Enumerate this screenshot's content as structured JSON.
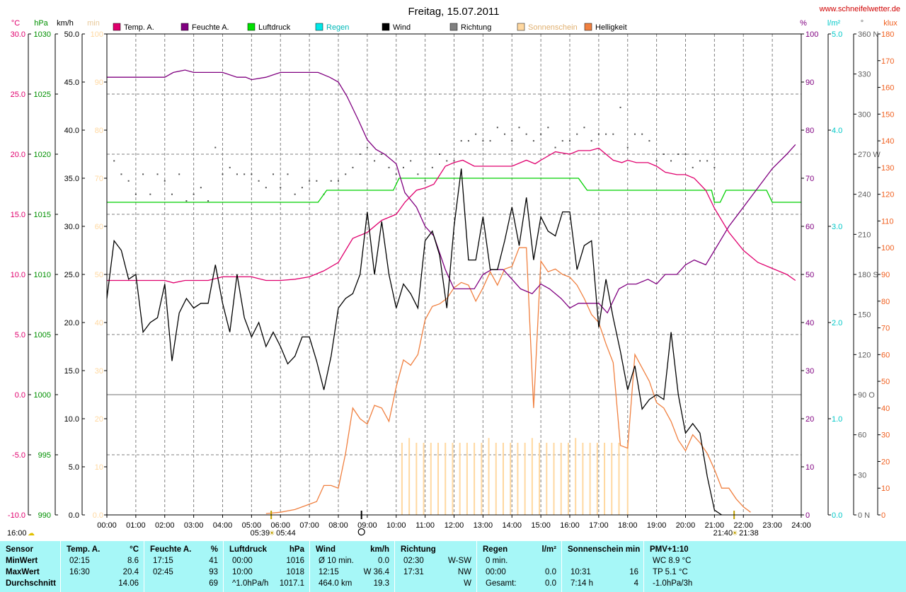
{
  "site": "www.schneifelwetter.de",
  "title": "Freitag, 15.07.2011",
  "left_axis_units": [
    "°C",
    "hPa",
    "km/h",
    "min"
  ],
  "right_axis_units": [
    "%",
    "l/m²",
    "°",
    "klux"
  ],
  "legend": [
    {
      "name": "Temp. A.",
      "color": "#e0006e"
    },
    {
      "name": "Feuchte A.",
      "color": "#800080"
    },
    {
      "name": "Luftdruck",
      "color": "#00e000"
    },
    {
      "name": "Regen",
      "color": "#00e8e8"
    },
    {
      "name": "Wind",
      "color": "#000000"
    },
    {
      "name": "Richtung",
      "color": "#808080"
    },
    {
      "name": "Sonnenschein",
      "color": "#ffd8a0"
    },
    {
      "name": "Helligkeit",
      "color": "#f08040"
    }
  ],
  "sun": {
    "rise_label": "05:39",
    "rise_arrow_label": "05:44",
    "set_label": "21:40",
    "set_arrow_label": "21:38",
    "rise_x": 5.68,
    "set_x": 21.68,
    "noon_x": 8.8
  },
  "start_label": "16:00",
  "chart_data": {
    "type": "line",
    "x_range": [
      0,
      24
    ],
    "x_tick_labels": [
      "00:00",
      "01:00",
      "02:00",
      "03:00",
      "04:00",
      "05:00",
      "06:00",
      "07:00",
      "08:00",
      "09:00",
      "10:00",
      "11:00",
      "12:00",
      "13:00",
      "14:00",
      "15:00",
      "16:00",
      "17:00",
      "18:00",
      "19:00",
      "20:00",
      "21:00",
      "22:00",
      "23:00",
      "24:00"
    ],
    "axes": {
      "temp": {
        "unit": "°C",
        "range": [
          -10,
          30
        ],
        "ticks": [
          "30.0",
          "25.0",
          "20.0",
          "15.0",
          "10.0",
          "5.0",
          "0.0",
          "-5.0",
          "-10.0"
        ],
        "color": "#e0006e"
      },
      "pressure": {
        "unit": "hPa",
        "range": [
          990,
          1030
        ],
        "ticks": [
          "1030",
          "1025",
          "1020",
          "1015",
          "1010",
          "1005",
          "1000",
          "995",
          "990"
        ],
        "color": "#009000"
      },
      "wind": {
        "unit": "km/h",
        "range": [
          0,
          50
        ],
        "ticks": [
          "50.0",
          "45.0",
          "40.0",
          "35.0",
          "30.0",
          "25.0",
          "20.0",
          "15.0",
          "10.0",
          "5.0",
          "0.0"
        ],
        "color": "#000000"
      },
      "sunshine": {
        "unit": "min",
        "range": [
          0,
          100
        ],
        "ticks": [
          "100",
          "90",
          "80",
          "70",
          "60",
          "50",
          "40",
          "30",
          "20",
          "10",
          "0.0"
        ],
        "color": "#ffd8a0"
      },
      "humidity": {
        "unit": "%",
        "range": [
          0,
          100
        ],
        "ticks": [
          "100",
          "90",
          "80",
          "70",
          "60",
          "50",
          "40",
          "30",
          "20",
          "10",
          "0"
        ],
        "color": "#800080"
      },
      "rain": {
        "unit": "l/m²",
        "range": [
          0,
          5
        ],
        "ticks": [
          "5.0",
          "4.0",
          "3.0",
          "2.0",
          "1.0",
          "0.0"
        ],
        "color": "#00c8c8"
      },
      "direction": {
        "unit": "°",
        "range": [
          0,
          360
        ],
        "ticks": [
          "360 N",
          "330",
          "300",
          "270 W",
          "240",
          "210",
          "180 S",
          "150",
          "120",
          "90 O",
          "60",
          "30",
          "0 N"
        ],
        "color": "#606060"
      },
      "brightness": {
        "unit": "klux",
        "range": [
          0,
          180
        ],
        "ticks": [
          "180",
          "170",
          "160",
          "150",
          "140",
          "130",
          "120",
          "110",
          "100",
          "90",
          "80",
          "70",
          "60",
          "50",
          "40",
          "30",
          "20",
          "10",
          "0"
        ],
        "color": "#f06020"
      }
    },
    "series": [
      {
        "name": "Temp. A.",
        "axis": "temp",
        "x": [
          0,
          0.5,
          1,
          1.5,
          2,
          2.3,
          2.7,
          3,
          3.5,
          4,
          4.5,
          5,
          5.5,
          6,
          6.5,
          7,
          7.5,
          8,
          8.5,
          9,
          9.5,
          10,
          10.3,
          10.7,
          11,
          11.3,
          11.7,
          12,
          12.3,
          12.7,
          13,
          13.5,
          14,
          14.5,
          14.8,
          15,
          15.5,
          16,
          16.3,
          16.7,
          17,
          17.5,
          17.8,
          18,
          18.3,
          18.7,
          19,
          19.3,
          19.7,
          20,
          20.3,
          20.7,
          21,
          21.5,
          22,
          22.5,
          23,
          23.5,
          23.8
        ],
        "y": [
          9.5,
          9.5,
          9.5,
          9.5,
          9.5,
          9.3,
          9.5,
          9.5,
          9.5,
          9.8,
          9.8,
          9.8,
          9.5,
          9.5,
          9.6,
          9.8,
          10.3,
          11.0,
          13.0,
          13.5,
          14.5,
          15.0,
          16.0,
          17.0,
          17.2,
          17.5,
          19.0,
          19.3,
          19.5,
          19.0,
          19.0,
          19.0,
          19.0,
          19.5,
          19.2,
          19.5,
          20.2,
          20.0,
          20.3,
          20.3,
          20.5,
          19.5,
          19.3,
          19.5,
          19.3,
          19.3,
          19.0,
          18.5,
          18.3,
          18.3,
          18.0,
          17.0,
          15.5,
          13.5,
          12.0,
          11.0,
          10.5,
          10.0,
          9.5
        ]
      },
      {
        "name": "Feuchte A.",
        "axis": "humidity",
        "x": [
          0,
          0.5,
          1,
          1.5,
          2,
          2.3,
          2.7,
          3,
          3.5,
          4,
          4.5,
          4.8,
          5,
          5.5,
          6,
          6.5,
          7,
          7.3,
          7.7,
          8,
          8.3,
          8.7,
          9,
          9.3,
          9.6,
          10,
          10.3,
          10.7,
          11,
          11.3,
          11.7,
          12,
          12.3,
          12.7,
          13,
          13.3,
          13.7,
          14,
          14.3,
          14.7,
          15,
          15.3,
          15.7,
          16,
          16.3,
          16.7,
          17,
          17.3,
          17.7,
          18,
          18.3,
          18.7,
          19,
          19.3,
          19.7,
          20,
          20.3,
          20.7,
          21,
          21.5,
          22,
          22.5,
          23,
          23.5,
          23.8
        ],
        "y": [
          91,
          91,
          91,
          91,
          91,
          92,
          92.5,
          92,
          92,
          92,
          91,
          91,
          90.5,
          91,
          92,
          92,
          92,
          92,
          91,
          90,
          87,
          82,
          78,
          76,
          75,
          73,
          67,
          64,
          60,
          58,
          51,
          47,
          47,
          47,
          50,
          51,
          51,
          49,
          47,
          46,
          48,
          47,
          45,
          43,
          44,
          44,
          44,
          42,
          47,
          48,
          48,
          49,
          48,
          50,
          50,
          52,
          53,
          52,
          55,
          60,
          64,
          68,
          72,
          75,
          77
        ]
      },
      {
        "name": "Luftdruck",
        "axis": "pressure",
        "x": [
          0,
          7.3,
          7.6,
          9.9,
          10.1,
          16.3,
          16.6,
          20.9,
          21.0,
          21.2,
          21.4,
          22.8,
          23.0,
          24
        ],
        "y": [
          1016,
          1016,
          1017,
          1017,
          1018,
          1018,
          1017,
          1017,
          1016,
          1016,
          1017,
          1017,
          1016,
          1016
        ]
      },
      {
        "name": "Wind",
        "axis": "wind",
        "x": [
          0,
          0.25,
          0.5,
          0.75,
          1,
          1.25,
          1.5,
          1.75,
          2,
          2.25,
          2.5,
          2.75,
          3,
          3.25,
          3.5,
          3.75,
          4,
          4.25,
          4.5,
          4.75,
          5,
          5.25,
          5.5,
          5.75,
          6,
          6.25,
          6.5,
          6.75,
          7,
          7.25,
          7.5,
          7.75,
          8,
          8.25,
          8.5,
          8.75,
          9,
          9.25,
          9.5,
          9.75,
          10,
          10.25,
          10.5,
          10.75,
          11,
          11.25,
          11.5,
          11.75,
          12,
          12.25,
          12.5,
          12.75,
          13,
          13.25,
          13.5,
          13.75,
          14,
          14.25,
          14.5,
          14.75,
          15,
          15.25,
          15.5,
          15.75,
          16,
          16.25,
          16.5,
          16.75,
          17,
          17.25,
          17.5,
          17.75,
          18,
          18.25,
          18.5,
          18.75,
          19,
          19.25,
          19.5,
          19.75,
          20,
          20.25,
          20.5,
          20.75,
          21,
          21.25
        ],
        "y": [
          22.5,
          28.5,
          27.5,
          24.5,
          25,
          19,
          20,
          20.5,
          24,
          16,
          21,
          22.5,
          21.5,
          22,
          22,
          26,
          22,
          19,
          25,
          20.5,
          18.5,
          20,
          17.5,
          19,
          17.5,
          15.7,
          16.5,
          18.5,
          18.5,
          16,
          13,
          16.5,
          21.5,
          22.5,
          23,
          25,
          31.5,
          25,
          30.5,
          25,
          21.5,
          24,
          23,
          21.5,
          28.5,
          29.5,
          27,
          21.5,
          30,
          36,
          26.5,
          26.5,
          31,
          25.5,
          25.5,
          28.5,
          32,
          28,
          33,
          26.5,
          31,
          29.5,
          29,
          31.5,
          31.5,
          25.5,
          28,
          28.5,
          19.5,
          24.5,
          20.5,
          17,
          13,
          15.5,
          11,
          12,
          12.5,
          12,
          19,
          12.5,
          8.5,
          9.5,
          8.5,
          4,
          0.5,
          0
        ]
      },
      {
        "name": "Richtung",
        "axis": "direction",
        "x": [
          0.25,
          0.5,
          0.75,
          1,
          1.25,
          1.5,
          1.75,
          2,
          2.25,
          2.5,
          2.75,
          3,
          3.25,
          3.5,
          3.75,
          4,
          4.25,
          4.5,
          4.75,
          5,
          5.25,
          5.5,
          5.75,
          6,
          6.25,
          6.5,
          6.75,
          7,
          7.25,
          7.5,
          7.75,
          8,
          8.25,
          8.5,
          8.75,
          9,
          9.25,
          9.5,
          9.75,
          10,
          10.25,
          10.5,
          10.75,
          11,
          11.25,
          11.5,
          11.75,
          12,
          12.25,
          12.5,
          12.75,
          13,
          13.25,
          13.5,
          13.75,
          14,
          14.25,
          14.5,
          14.75,
          15,
          15.25,
          15.5,
          15.75,
          16,
          16.25,
          16.5,
          16.75,
          17,
          17.25,
          17.5,
          17.75,
          18,
          18.25,
          18.5,
          18.75,
          19,
          19.25,
          19.5,
          19.75,
          20,
          20.25,
          20.5,
          20.75,
          21
        ],
        "y": [
          265,
          255,
          250,
          240,
          255,
          240,
          255,
          250,
          240,
          255,
          235,
          240,
          245,
          235,
          275,
          255,
          260,
          255,
          255,
          255,
          250,
          245,
          255,
          245,
          255,
          240,
          245,
          250,
          250,
          240,
          250,
          250,
          255,
          260,
          270,
          275,
          265,
          270,
          260,
          255,
          260,
          265,
          255,
          250,
          260,
          270,
          265,
          265,
          280,
          280,
          285,
          280,
          280,
          290,
          285,
          280,
          290,
          285,
          280,
          285,
          290,
          275,
          280,
          280,
          285,
          290,
          280,
          285,
          285,
          285,
          305,
          275,
          285,
          285,
          280,
          265,
          270,
          265,
          270,
          270,
          260,
          265,
          265,
          260
        ]
      },
      {
        "name": "Sonnenschein",
        "axis": "sunshine",
        "x": [
          10.2,
          10.45,
          10.7,
          10.95,
          11.2,
          11.45,
          11.7,
          11.95,
          12.2,
          12.45,
          12.7,
          12.95,
          13.2,
          13.45,
          13.7,
          13.95,
          14.2,
          14.45,
          14.7,
          14.95,
          15.2,
          15.45,
          15.7,
          15.95,
          16.2,
          16.45,
          16.7,
          16.95,
          17.2,
          17.45,
          17.7,
          18.0
        ],
        "y": [
          15,
          16,
          15,
          15,
          15,
          15,
          15,
          15,
          15,
          15,
          15,
          15,
          16,
          15,
          15,
          15,
          15,
          15,
          16,
          15,
          15,
          15,
          15,
          15,
          16,
          15,
          15,
          15,
          15,
          15,
          15,
          15
        ]
      },
      {
        "name": "Helligkeit",
        "axis": "brightness",
        "x": [
          5.5,
          6,
          6.5,
          7,
          7.25,
          7.5,
          7.75,
          8,
          8.25,
          8.5,
          8.75,
          9,
          9.25,
          9.5,
          9.75,
          10,
          10.25,
          10.5,
          10.75,
          11,
          11.25,
          11.5,
          11.75,
          12,
          12.25,
          12.5,
          12.75,
          13,
          13.25,
          13.5,
          13.75,
          14,
          14.25,
          14.5,
          14.75,
          15,
          15.25,
          15.5,
          15.75,
          16,
          16.25,
          16.5,
          16.75,
          17,
          17.25,
          17.5,
          17.75,
          18,
          18.25,
          18.5,
          18.75,
          19,
          19.25,
          19.5,
          19.75,
          20,
          20.25,
          20.5,
          20.75,
          21,
          21.25,
          21.5,
          21.75,
          22,
          22.25
        ],
        "y": [
          0.5,
          1,
          2,
          4,
          5,
          11,
          11,
          10,
          23,
          40,
          36,
          34,
          41,
          40,
          35,
          48,
          58,
          56,
          60,
          73,
          78,
          79,
          81,
          85,
          87,
          86,
          80,
          85,
          91,
          86,
          92,
          93,
          100,
          100,
          40,
          95,
          91,
          92,
          90,
          89,
          86,
          81,
          75,
          72,
          64,
          57,
          26,
          25,
          60,
          55,
          50,
          42,
          40,
          35,
          28,
          24,
          30,
          27,
          23,
          17,
          10,
          10,
          6,
          3,
          1
        ]
      }
    ]
  },
  "stats": {
    "row_labels": [
      "Sensor",
      "MinWert",
      "MaxWert",
      "Durchschnitt"
    ],
    "blocks": [
      {
        "name": "Temp. A.",
        "unit": "°C",
        "rows": [
          [
            "02:15",
            "8.6"
          ],
          [
            "16:30",
            "20.4"
          ],
          [
            "",
            "14.06"
          ]
        ]
      },
      {
        "name": "Feuchte A.",
        "unit": "%",
        "rows": [
          [
            "17:15",
            "41"
          ],
          [
            "02:45",
            "93"
          ],
          [
            "",
            "69"
          ]
        ]
      },
      {
        "name": "Luftdruck",
        "unit": "hPa",
        "rows": [
          [
            "00:00",
            "1016"
          ],
          [
            "10:00",
            "1018"
          ],
          [
            "^1.0hPa/h",
            "1017.1"
          ]
        ]
      },
      {
        "name": "Wind",
        "unit": "km/h",
        "rows": [
          [
            "Ø 10 min.",
            "0.0"
          ],
          [
            "12:15",
            "W 36.4"
          ],
          [
            "464.0 km",
            "19.3"
          ]
        ]
      },
      {
        "name": "Richtung",
        "unit": "",
        "rows": [
          [
            "02:30",
            "W-SW"
          ],
          [
            "17:31",
            "NW"
          ],
          [
            "",
            "W"
          ]
        ]
      },
      {
        "name": "Regen",
        "unit": "l/m²",
        "rows": [
          [
            "0 min.",
            ""
          ],
          [
            "00:00",
            "0.0"
          ],
          [
            "Gesamt:",
            "0.0"
          ]
        ]
      },
      {
        "name": "Sonnenschein min",
        "unit": "",
        "rows": [
          [
            "",
            ""
          ],
          [
            "10:31",
            "16"
          ],
          [
            "7:14 h",
            "4"
          ]
        ]
      },
      {
        "name": "PMV+1:10",
        "unit": "",
        "rows": [
          [
            "WC 8.9 °C",
            ""
          ],
          [
            "TP 5.1 °C",
            ""
          ],
          [
            "-1.0hPa/3h",
            ""
          ]
        ]
      }
    ]
  }
}
